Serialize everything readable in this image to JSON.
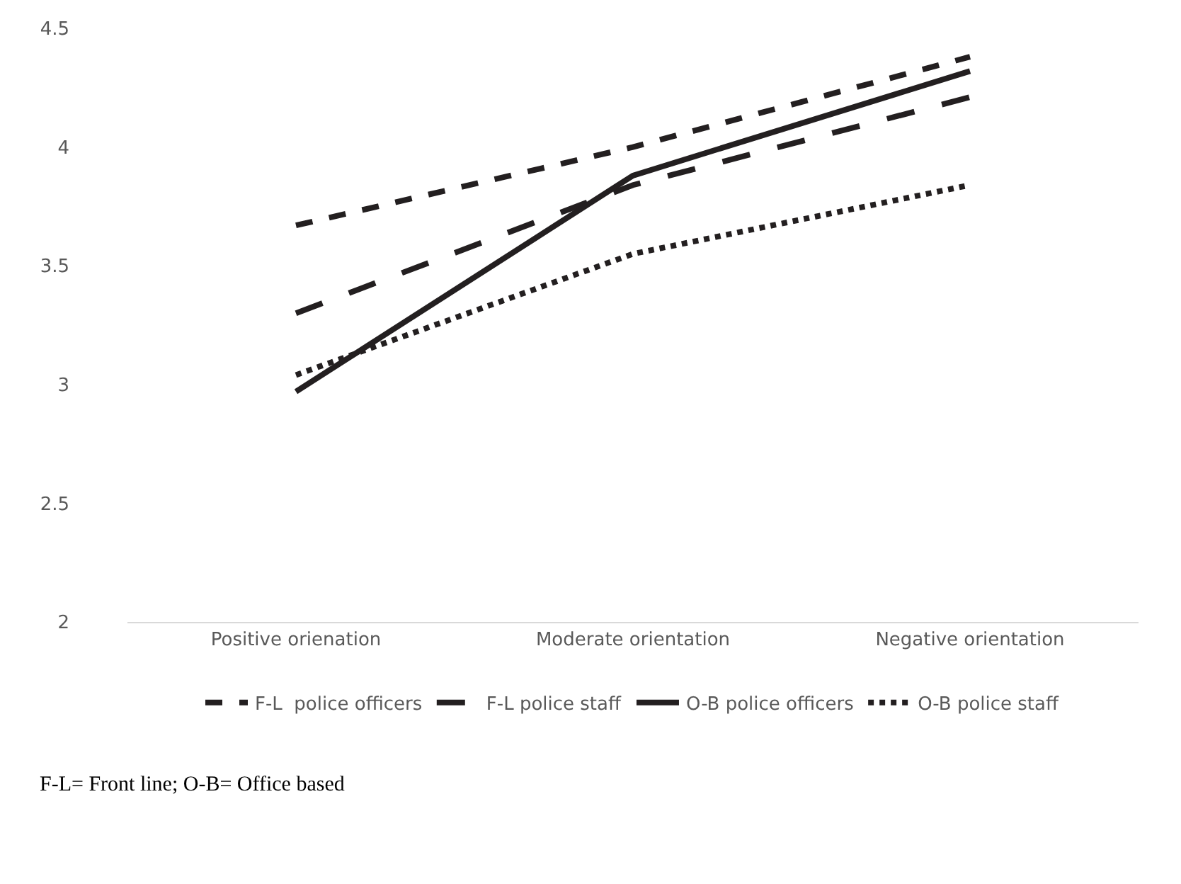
{
  "chart_data": {
    "type": "line",
    "categories": [
      "Positive orienation",
      "Moderate orientation",
      "Negative orientation"
    ],
    "series": [
      {
        "name": "F-L  police officers",
        "color": "#231f20",
        "line_style": "dashed",
        "values": [
          3.67,
          4.0,
          4.38
        ]
      },
      {
        "name": "F-L police staff",
        "color": "#231f20",
        "line_style": "longdashed",
        "values": [
          3.3,
          3.84,
          4.21
        ]
      },
      {
        "name": "O-B police officers",
        "color": "#231f20",
        "line_style": "solid",
        "values": [
          2.97,
          3.88,
          4.32
        ]
      },
      {
        "name": "O-B police staff",
        "color": "#231f20",
        "line_style": "dotted",
        "values": [
          3.04,
          3.55,
          3.84
        ]
      }
    ],
    "ylim": [
      2,
      4.5
    ],
    "yticks": [
      2,
      2.5,
      3,
      3.5,
      4,
      4.5
    ],
    "grid": false,
    "legend": "bottom",
    "marker": "none",
    "annotations": [
      "F-L= Front line; O-B= Office based"
    ]
  }
}
